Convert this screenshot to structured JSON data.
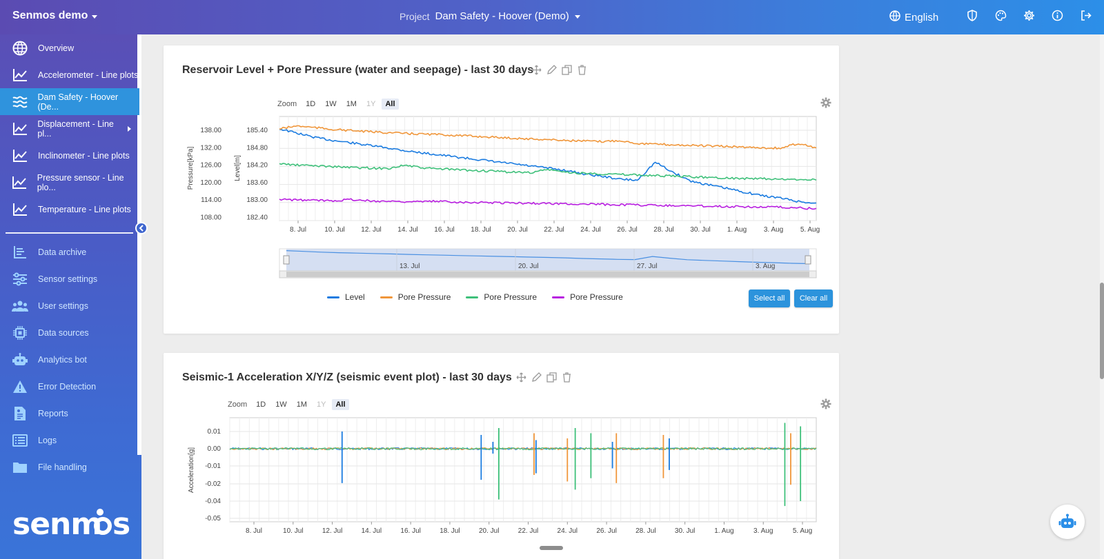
{
  "topbar": {
    "brand": "Senmos demo",
    "project_label": "Project",
    "project_name": "Dam Safety - Hoover (Demo)",
    "language": "English"
  },
  "sidebar": {
    "items": [
      {
        "label": "Overview",
        "icon": "globe-icon"
      },
      {
        "label": "Accelerometer - Line plots",
        "icon": "line-chart-icon"
      },
      {
        "label": "Dam Safety - Hoover (De...",
        "icon": "waves-icon"
      },
      {
        "label": "Displacement - Line pl...",
        "icon": "line-chart-icon"
      },
      {
        "label": "Inclinometer - Line plots",
        "icon": "line-chart-icon"
      },
      {
        "label": "Pressure sensor - Line plo...",
        "icon": "line-chart-icon"
      },
      {
        "label": "Temperature - Line plots",
        "icon": "line-chart-icon"
      }
    ],
    "tools": [
      {
        "label": "Data archive",
        "icon": "archive-icon"
      },
      {
        "label": "Sensor settings",
        "icon": "sliders-icon"
      },
      {
        "label": "User settings",
        "icon": "users-icon"
      },
      {
        "label": "Data sources",
        "icon": "chip-icon"
      },
      {
        "label": "Analytics bot",
        "icon": "robot-icon"
      },
      {
        "label": "Error Detection",
        "icon": "warning-icon"
      },
      {
        "label": "Reports",
        "icon": "report-icon"
      },
      {
        "label": "Logs",
        "icon": "list-icon"
      },
      {
        "label": "File handling",
        "icon": "folder-icon"
      }
    ],
    "logo": "senmos"
  },
  "zoom": {
    "label": "Zoom",
    "options": [
      "1D",
      "1W",
      "1M",
      "1Y",
      "All"
    ],
    "selected": "All"
  },
  "chart1": {
    "title": "Reservoir Level + Pore Pressure (water and seepage) - last 30 days",
    "legend": [
      "Level",
      "Pore Pressure",
      "Pore Pressure",
      "Pore Pressure"
    ],
    "select_all": "Select all",
    "clear_all": "Clear all",
    "nav_labels": [
      "13. Jul",
      "20. Jul",
      "27. Jul",
      "3. Aug"
    ]
  },
  "chart2": {
    "title": "Seismic-1 Acceleration X/Y/Z (seismic event plot) - last 30 days"
  },
  "colors": {
    "blue": "#1a7be0",
    "orange": "#f0963a",
    "green": "#3ec07a",
    "purple": "#b81ee0"
  },
  "chart_data": [
    {
      "type": "line",
      "x_ticks": [
        "8. Jul",
        "10. Jul",
        "12. Jul",
        "14. Jul",
        "16. Jul",
        "18. Jul",
        "20. Jul",
        "22. Jul",
        "24. Jul",
        "26. Jul",
        "28. Jul",
        "30. Jul",
        "1. Aug",
        "3. Aug",
        "5. Aug"
      ],
      "y_left_label": "Pressure[kPa]",
      "y_left_ticks": [
        "138.00",
        "132.00",
        "126.00",
        "120.00",
        "114.00",
        "108.00"
      ],
      "y_right_label": "Level[m]",
      "y_right_ticks": [
        "185.40",
        "184.80",
        "184.20",
        "183.60",
        "183.00",
        "182.40"
      ],
      "ylim_level": [
        182.4,
        185.4
      ],
      "ylim_pressure": [
        108,
        138
      ],
      "series": [
        {
          "name": "Level",
          "axis": "level",
          "color": "#1a7be0",
          "values": [
            185.45,
            185.3,
            185.15,
            185.05,
            184.97,
            184.88,
            184.8,
            184.7,
            184.62,
            184.55,
            184.47,
            184.4,
            184.32,
            184.25,
            184.17,
            184.1,
            184.02,
            183.9,
            183.82,
            183.72,
            183.68,
            184.3,
            183.95,
            183.65,
            183.52,
            183.4,
            183.27,
            183.15,
            183.07,
            182.95,
            182.88
          ]
        },
        {
          "name": "Pore Pressure",
          "axis": "pressure",
          "color": "#f0963a",
          "values": [
            138.5,
            139.5,
            138.9,
            138.3,
            137.9,
            137.5,
            137.2,
            136.9,
            136.7,
            136.5,
            136.2,
            135.9,
            135.6,
            135.3,
            135.0,
            134.8,
            134.5,
            134.3,
            134.1,
            134.5,
            133.5,
            133.2,
            133.0,
            132.8,
            132.6,
            132.4,
            132.2,
            132.0,
            131.8,
            133.5,
            132.0
          ]
        },
        {
          "name": "Pore Pressure",
          "axis": "pressure",
          "color": "#3ec07a",
          "values": [
            126.5,
            126.0,
            125.8,
            125.5,
            125.2,
            125.0,
            124.8,
            126.0,
            125.0,
            124.7,
            124.4,
            124.1,
            123.9,
            123.6,
            123.4,
            124.5,
            123.5,
            123.2,
            123.0,
            122.8,
            122.6,
            122.4,
            122.2,
            122.0,
            121.8,
            121.6,
            121.4,
            121.3,
            121.1,
            121.0,
            121.2
          ]
        },
        {
          "name": "Pore Pressure",
          "axis": "pressure",
          "color": "#b81ee0",
          "values": [
            114.2,
            114.0,
            113.9,
            113.8,
            114.2,
            113.7,
            113.6,
            113.5,
            113.4,
            113.6,
            113.3,
            113.2,
            113.1,
            113.0,
            112.9,
            112.8,
            112.7,
            112.6,
            112.5,
            112.4,
            112.3,
            112.2,
            112.1,
            112.0,
            111.9,
            111.8,
            111.7,
            111.6,
            111.5,
            111.3,
            111.0
          ]
        }
      ]
    },
    {
      "type": "line",
      "x_ticks": [
        "8. Jul",
        "10. Jul",
        "12. Jul",
        "14. Jul",
        "16. Jul",
        "18. Jul",
        "20. Jul",
        "22. Jul",
        "24. Jul",
        "26. Jul",
        "28. Jul",
        "30. Jul",
        "1. Aug",
        "3. Aug",
        "5. Aug"
      ],
      "ylabel": "Acceleration[g]",
      "y_ticks": [
        "0.01",
        "0.00",
        "-0.01",
        "-0.02",
        "-0.04",
        "-0.05"
      ],
      "ylim": [
        -0.05,
        0.015
      ],
      "spikes": [
        {
          "day": 12.5,
          "color": "#1a7be0",
          "max": 0.01,
          "min": -0.021
        },
        {
          "day": 19.6,
          "color": "#1a7be0",
          "max": 0.008,
          "min": -0.019
        },
        {
          "day": 20.2,
          "color": "#1a7be0",
          "max": 0.004,
          "min": -0.003
        },
        {
          "day": 20.5,
          "color": "#3ec07a",
          "max": 0.012,
          "min": -0.031
        },
        {
          "day": 22.3,
          "color": "#f0963a",
          "max": 0.009,
          "min": -0.016
        },
        {
          "day": 22.4,
          "color": "#1a7be0",
          "max": 0.005,
          "min": -0.015
        },
        {
          "day": 24.0,
          "color": "#f0963a",
          "max": 0.006,
          "min": -0.02
        },
        {
          "day": 24.4,
          "color": "#3ec07a",
          "max": 0.012,
          "min": -0.025
        },
        {
          "day": 25.2,
          "color": "#3ec07a",
          "max": 0.009,
          "min": -0.018
        },
        {
          "day": 26.3,
          "color": "#1a7be0",
          "max": 0.004,
          "min": -0.012
        },
        {
          "day": 26.5,
          "color": "#f0963a",
          "max": 0.009,
          "min": -0.021
        },
        {
          "day": 28.9,
          "color": "#f0963a",
          "max": 0.008,
          "min": -0.018
        },
        {
          "day": 29.2,
          "color": "#1a7be0",
          "max": 0.006,
          "min": -0.013
        },
        {
          "day": 35.1,
          "color": "#3ec07a",
          "max": 0.015,
          "min": -0.035
        },
        {
          "day": 35.4,
          "color": "#f0963a",
          "max": 0.009,
          "min": -0.022
        },
        {
          "day": 35.9,
          "color": "#3ec07a",
          "max": 0.013,
          "min": -0.032
        }
      ]
    }
  ]
}
